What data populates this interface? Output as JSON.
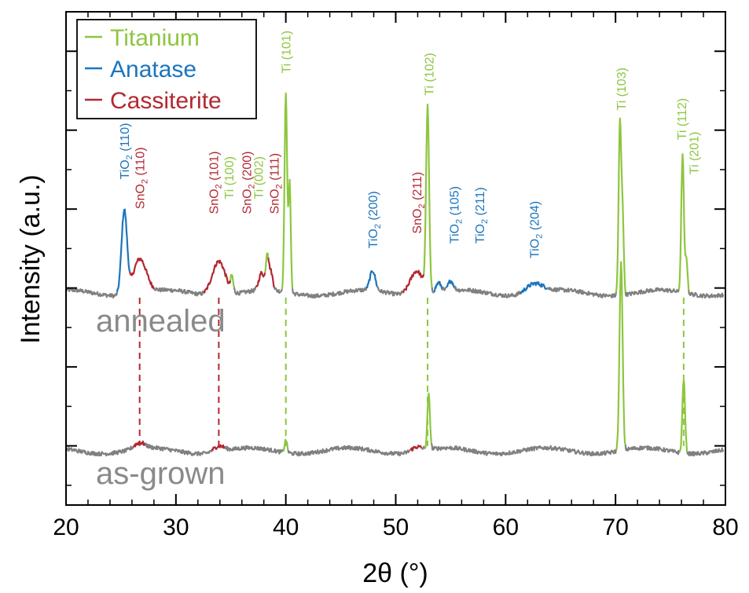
{
  "chart_data": {
    "type": "line",
    "xlabel": "2θ (°)",
    "ylabel": "Intensity (a.u.)",
    "xlim": [
      20,
      80
    ],
    "ylim": [
      0,
      1
    ],
    "xticks": [
      "20",
      "30",
      "40",
      "50",
      "60",
      "70",
      "80"
    ],
    "grid": false,
    "legend_position": "top-left",
    "colors": {
      "baseline": "#808080",
      "Titanium": "#8dc63f",
      "Anatase": "#1c75bc",
      "Cassiterite": "#b22832"
    },
    "legend": [
      {
        "label": "Titanium",
        "phase": "Titanium"
      },
      {
        "label": "Anatase",
        "phase": "Anatase"
      },
      {
        "label": "Cassiterite",
        "phase": "Cassiterite"
      }
    ],
    "series": [
      {
        "name": "annealed",
        "baseline": 0.43,
        "peaks": [
          {
            "x": 25.3,
            "height": 0.17,
            "phase": "Anatase",
            "w": 0.25
          },
          {
            "x": 26.7,
            "height": 0.07,
            "phase": "Cassiterite",
            "w": 0.6
          },
          {
            "x": 33.9,
            "height": 0.07,
            "phase": "Cassiterite",
            "w": 0.6
          },
          {
            "x": 35.1,
            "height": 0.03,
            "phase": "Titanium",
            "w": 0.12
          },
          {
            "x": 37.8,
            "height": 0.035,
            "phase": "Cassiterite",
            "w": 0.25
          },
          {
            "x": 38.3,
            "height": 0.06,
            "phase": "Titanium",
            "w": 0.12
          },
          {
            "x": 38.6,
            "height": 0.04,
            "phase": "Cassiterite",
            "w": 0.2
          },
          {
            "x": 40.0,
            "height": 0.4,
            "phase": "Titanium",
            "w": 0.12
          },
          {
            "x": 40.35,
            "height": 0.22,
            "phase": "Titanium",
            "w": 0.1
          },
          {
            "x": 47.9,
            "height": 0.04,
            "phase": "Anatase",
            "w": 0.25
          },
          {
            "x": 51.9,
            "height": 0.05,
            "phase": "Cassiterite",
            "w": 0.6
          },
          {
            "x": 52.9,
            "height": 0.37,
            "phase": "Titanium",
            "w": 0.14
          },
          {
            "x": 53.9,
            "height": 0.02,
            "phase": "Anatase",
            "w": 0.25
          },
          {
            "x": 55.0,
            "height": 0.02,
            "phase": "Anatase",
            "w": 0.25
          },
          {
            "x": 62.6,
            "height": 0.02,
            "phase": "Anatase",
            "w": 0.8
          },
          {
            "x": 70.4,
            "height": 0.35,
            "phase": "Titanium",
            "w": 0.12
          },
          {
            "x": 70.65,
            "height": 0.15,
            "phase": "Titanium",
            "w": 0.1
          },
          {
            "x": 76.1,
            "height": 0.28,
            "phase": "Titanium",
            "w": 0.12
          },
          {
            "x": 76.45,
            "height": 0.07,
            "phase": "Titanium",
            "w": 0.1
          }
        ],
        "label": "annealed"
      },
      {
        "name": "as-grown",
        "baseline": 0.11,
        "peaks": [
          {
            "x": 26.7,
            "height": 0.012,
            "phase": "Cassiterite",
            "w": 0.5
          },
          {
            "x": 33.9,
            "height": 0.012,
            "phase": "Cassiterite",
            "w": 0.5
          },
          {
            "x": 40.0,
            "height": 0.025,
            "phase": "Titanium",
            "w": 0.12
          },
          {
            "x": 51.9,
            "height": 0.01,
            "phase": "Cassiterite",
            "w": 0.5
          },
          {
            "x": 53.0,
            "height": 0.11,
            "phase": "Titanium",
            "w": 0.12
          },
          {
            "x": 70.5,
            "height": 0.38,
            "phase": "Titanium",
            "w": 0.14
          },
          {
            "x": 76.2,
            "height": 0.15,
            "phase": "Titanium",
            "w": 0.12
          }
        ],
        "label": "as-grown"
      }
    ],
    "dashed_guides": [
      {
        "x": 26.7,
        "phase": "Cassiterite"
      },
      {
        "x": 33.9,
        "phase": "Cassiterite"
      },
      {
        "x": 40.0,
        "phase": "Titanium"
      },
      {
        "x": 52.9,
        "phase": "Titanium"
      },
      {
        "x": 76.2,
        "phase": "Titanium"
      }
    ],
    "annotations": [
      {
        "phase": "Anatase",
        "prefix": "TiO",
        "sub": "2",
        "hkl": "(110)",
        "x": 25.3,
        "y": 0.66
      },
      {
        "phase": "Cassiterite",
        "prefix": "SnO",
        "sub": "2",
        "hkl": "(110)",
        "x": 26.7,
        "y": 0.6
      },
      {
        "phase": "Cassiterite",
        "prefix": "SnO",
        "sub": "2",
        "hkl": "(101)",
        "x": 33.4,
        "y": 0.59
      },
      {
        "phase": "Titanium",
        "prefix": "Ti",
        "sub": "",
        "hkl": "(100)",
        "x": 34.8,
        "y": 0.62
      },
      {
        "phase": "Cassiterite",
        "prefix": "SnO",
        "sub": "2",
        "hkl": "(200)",
        "x": 36.4,
        "y": 0.59
      },
      {
        "phase": "Titanium",
        "prefix": "Ti",
        "sub": "",
        "hkl": "(002)",
        "x": 37.5,
        "y": 0.62
      },
      {
        "phase": "Cassiterite",
        "prefix": "SnO",
        "sub": "2",
        "hkl": "(111)",
        "x": 38.9,
        "y": 0.59
      },
      {
        "phase": "Titanium",
        "prefix": "Ti",
        "sub": "",
        "hkl": "(101)",
        "x": 40.0,
        "y": 0.875
      },
      {
        "phase": "Anatase",
        "prefix": "TiO",
        "sub": "2",
        "hkl": "(200)",
        "x": 47.9,
        "y": 0.52
      },
      {
        "phase": "Cassiterite",
        "prefix": "SnO",
        "sub": "2",
        "hkl": "(211)",
        "x": 51.9,
        "y": 0.55
      },
      {
        "phase": "Titanium",
        "prefix": "Ti",
        "sub": "",
        "hkl": "(102)",
        "x": 53.0,
        "y": 0.83
      },
      {
        "phase": "Anatase",
        "prefix": "TiO",
        "sub": "2",
        "hkl": "(105)",
        "x": 55.3,
        "y": 0.53
      },
      {
        "phase": "Anatase",
        "prefix": "TiO",
        "sub": "2",
        "hkl": "(211)",
        "x": 57.6,
        "y": 0.53
      },
      {
        "phase": "Anatase",
        "prefix": "TiO",
        "sub": "2",
        "hkl": "(204)",
        "x": 62.6,
        "y": 0.5
      },
      {
        "phase": "Titanium",
        "prefix": "Ti",
        "sub": "",
        "hkl": "(103)",
        "x": 70.5,
        "y": 0.8
      },
      {
        "phase": "Titanium",
        "prefix": "Ti",
        "sub": "",
        "hkl": "(112)",
        "x": 76.0,
        "y": 0.74
      },
      {
        "phase": "Titanium",
        "prefix": "Ti",
        "sub": "",
        "hkl": "(201)",
        "x": 77.1,
        "y": 0.67
      }
    ]
  }
}
